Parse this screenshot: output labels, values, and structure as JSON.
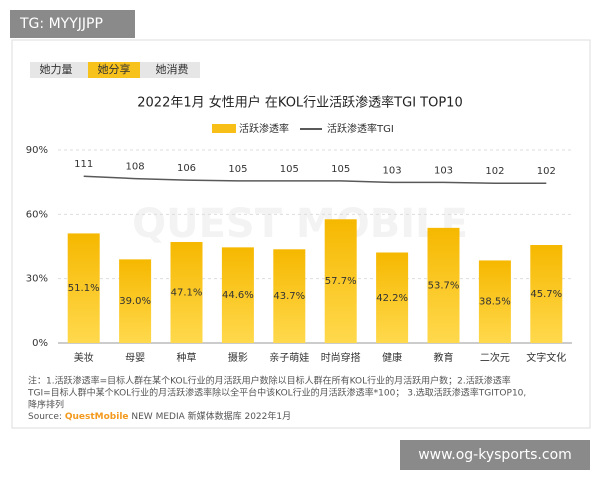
{
  "header": {
    "tag": "TG: MYYJJPP"
  },
  "tabs": [
    "她力量",
    "她分享",
    "她消费"
  ],
  "chart_data": {
    "type": "bar",
    "title": "2022年1月 女性用户 在KOL行业活跃渗透率TGI TOP10",
    "categories": [
      "美妆",
      "母婴",
      "种草",
      "摄影",
      "亲子萌娃",
      "时尚穿搭",
      "健康",
      "教育",
      "二次元",
      "文字文化"
    ],
    "series": [
      {
        "name": "活跃渗透率",
        "type": "bar",
        "color": "#f7bf17",
        "values": [
          51.1,
          39.0,
          47.1,
          44.6,
          43.7,
          57.7,
          42.2,
          53.7,
          38.5,
          45.7
        ],
        "value_labels": [
          "51.1%",
          "39.0%",
          "47.1%",
          "44.6%",
          "43.7%",
          "57.7%",
          "42.2%",
          "53.7%",
          "38.5%",
          "45.7%"
        ]
      },
      {
        "name": "活跃渗透率TGI",
        "type": "line",
        "axis": "y2",
        "color": "#595959",
        "values": [
          111,
          108,
          106,
          105,
          105,
          105,
          103,
          103,
          102,
          102
        ]
      }
    ],
    "ylim": [
      0,
      90
    ],
    "yticks": [
      {
        "value": 0,
        "label": "0%"
      },
      {
        "value": 30,
        "label": "30%"
      },
      {
        "value": 60,
        "label": "60%"
      },
      {
        "value": 90,
        "label": "90%"
      }
    ],
    "y2lim": [
      -105,
      145
    ],
    "grid": true,
    "watermark": "QUEST MOBILE"
  },
  "notes": [
    "注：1.活跃渗透率=目标人群在某个KOL行业的月活跃用户数除以目标人群在所有KOL行业的月活跃用户数；2.活跃渗透率",
    "TGI=目标人群中某个KOL行业的月活跃渗透率除以全平台中该KOL行业的月活跃渗透率*100；  3.选取活跃渗透率TGITOP10,",
    "降序排列"
  ],
  "source": [
    "Source:",
    "QuestMobile",
    "NEW MEDIA 新媒体数据库 2022年1月"
  ],
  "footer": "www.og-kysports.com"
}
